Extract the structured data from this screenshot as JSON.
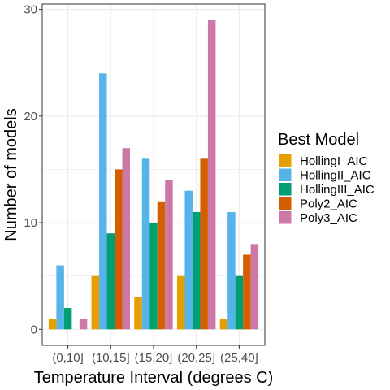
{
  "chart_data": {
    "type": "bar",
    "xlabel": "Temperature Interval (degrees C)",
    "ylabel": "Number of models",
    "ylim": [
      0,
      30
    ],
    "yticks": [
      0,
      10,
      20,
      30
    ],
    "grid": true,
    "legend_title": "Best Model",
    "legend_position": "right",
    "categories": [
      "(0,10]",
      "(10,15]",
      "(15,20]",
      "(20,25]",
      "(25,40]"
    ],
    "series": [
      {
        "name": "HollingI_AIC",
        "color": "#E69F00",
        "values": [
          1,
          5,
          3,
          5,
          1
        ]
      },
      {
        "name": "HollingII_AIC",
        "color": "#56B4E9",
        "values": [
          6,
          24,
          16,
          13,
          11
        ]
      },
      {
        "name": "HollingIII_AIC",
        "color": "#009E73",
        "values": [
          2,
          9,
          10,
          11,
          5
        ]
      },
      {
        "name": "Poly2_AIC",
        "color": "#D55E00",
        "values": [
          0,
          15,
          12,
          16,
          7
        ]
      },
      {
        "name": "Poly3_AIC",
        "color": "#CC79A7",
        "values": [
          1,
          17,
          14,
          29,
          8
        ]
      }
    ]
  }
}
